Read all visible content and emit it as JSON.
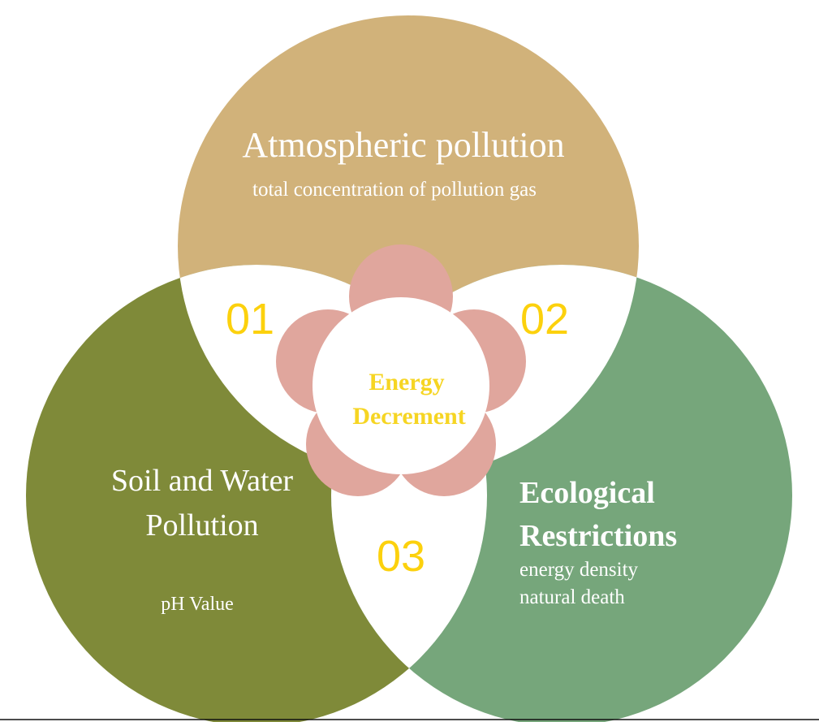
{
  "colors": {
    "top": "#d1b27a",
    "left": "#7f8a39",
    "right": "#76a67b",
    "flower": "#e0a69d",
    "number": "#fcd10d",
    "center_text": "#f6d523",
    "label": "#ffffff",
    "overlap": "#ffffff",
    "baseline": "#111111"
  },
  "diagram": {
    "top": {
      "title": "Atmospheric pollution",
      "subtitle": "total concentration of pollution gas"
    },
    "left": {
      "title_line1": "Soil and Water",
      "title_line2": "Pollution",
      "subtitle": "pH Value"
    },
    "right": {
      "title_line1": "Ecological",
      "title_line2": "Restrictions",
      "sub_line1": "energy density",
      "sub_line2": "natural death"
    },
    "center": {
      "line1": "Energy",
      "line2": "Decrement"
    },
    "numbers": {
      "n1": "01",
      "n2": "02",
      "n3": "03"
    }
  }
}
